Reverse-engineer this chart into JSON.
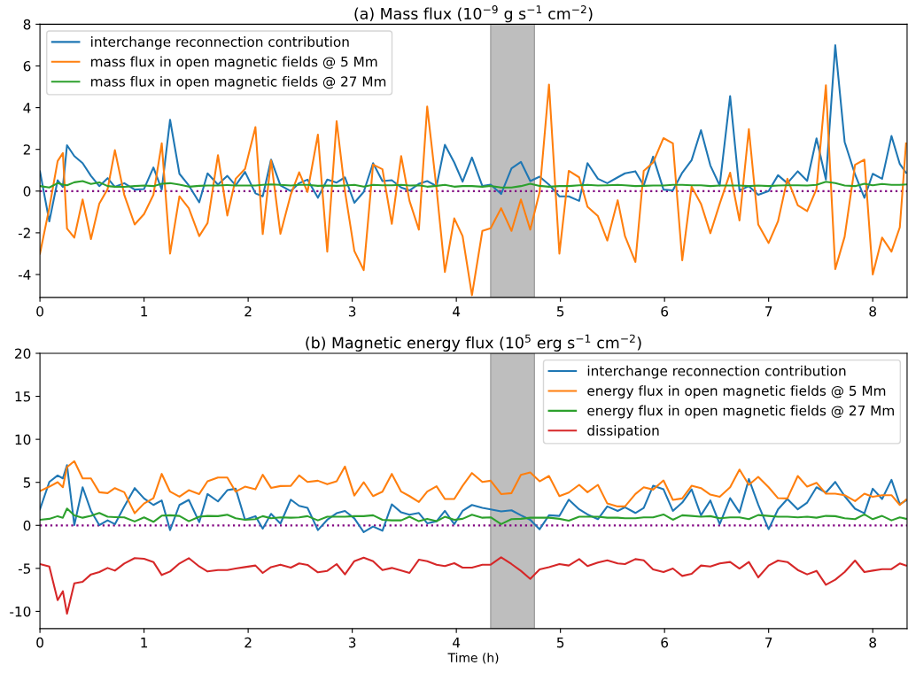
{
  "chart_data": [
    {
      "type": "line",
      "title": "(a) Mass flux (10$^{−9}$ g s$^{−1}$ cm$^{−2}$)",
      "x": [
        0,
        0.09,
        0.17,
        0.22,
        0.26,
        0.33,
        0.41,
        0.49,
        0.57,
        0.65,
        0.72,
        0.81,
        0.91,
        1.0,
        1.09,
        1.17,
        1.25,
        1.34,
        1.43,
        1.53,
        1.61,
        1.71,
        1.8,
        1.88,
        1.97,
        2.07,
        2.14,
        2.22,
        2.31,
        2.41,
        2.49,
        2.57,
        2.67,
        2.76,
        2.85,
        2.93,
        3.02,
        3.11,
        3.2,
        3.29,
        3.38,
        3.47,
        3.55,
        3.64,
        3.72,
        3.81,
        3.89,
        3.98,
        4.06,
        4.15,
        4.25,
        4.33,
        4.43,
        4.53,
        4.62,
        4.71,
        4.8,
        4.89,
        4.99,
        5.08,
        5.18,
        5.26,
        5.36,
        5.45,
        5.55,
        5.62,
        5.72,
        5.8,
        5.89,
        5.99,
        6.08,
        6.17,
        6.26,
        6.35,
        6.44,
        6.53,
        6.63,
        6.72,
        6.81,
        6.9,
        7.0,
        7.09,
        7.18,
        7.28,
        7.37,
        7.46,
        7.55,
        7.64,
        7.73,
        7.83,
        7.92,
        8.0,
        8.09,
        8.18,
        8.26,
        8.32
      ],
      "series": [
        {
          "name": "interchange reconnection contribution",
          "color": "#1f77b4",
          "values": [
            0.95,
            -1.45,
            0.52,
            0.2,
            2.2,
            1.68,
            1.34,
            0.73,
            0.24,
            0.62,
            0.2,
            0.38,
            0.07,
            0.1,
            1.13,
            0.07,
            3.42,
            0.83,
            0.27,
            -0.54,
            0.85,
            0.31,
            0.73,
            0.27,
            0.92,
            -0.11,
            -0.25,
            1.51,
            0.27,
            0,
            0.38,
            0.55,
            -0.32,
            0.55,
            0.41,
            0.66,
            -0.56,
            -0.04,
            1.34,
            0.48,
            0.52,
            0.17,
            0.03,
            0.35,
            0.48,
            0.24,
            2.22,
            1.37,
            0.45,
            1.61,
            0.24,
            0.31,
            -0.14,
            1.09,
            1.4,
            0.48,
            0.69,
            0.31,
            -0.25,
            -0.25,
            -0.47,
            1.34,
            0.59,
            0.38,
            0.66,
            0.85,
            0.95,
            0.27,
            1.65,
            0.07,
            0.03,
            0.88,
            1.48,
            2.92,
            1.23,
            0.27,
            4.55,
            0.03,
            0.24,
            -0.18,
            0,
            0.76,
            0.38,
            0.95,
            0.49,
            2.53,
            0.55,
            6.99,
            2.36,
            0.8,
            -0.32,
            0.83,
            0.59,
            2.64,
            1.3,
            0.88
          ]
        },
        {
          "name": "mass flux in open magnetic fields @ 5 Mm",
          "color": "#ff7f0e",
          "values": [
            -3.0,
            -0.8,
            1.44,
            1.82,
            -1.8,
            -2.23,
            -0.4,
            -2.3,
            -0.6,
            0.1,
            1.96,
            -0.18,
            -1.6,
            -1.1,
            -0.18,
            2.29,
            -3.0,
            -0.25,
            -0.82,
            -2.16,
            -1.53,
            1.72,
            -1.17,
            0.59,
            1.06,
            3.07,
            -2.06,
            1.47,
            -2.05,
            -0.16,
            0.9,
            -0.04,
            2.71,
            -2.9,
            3.35,
            0.0,
            -2.87,
            -3.79,
            1.27,
            1.05,
            -1.57,
            1.68,
            -0.47,
            -1.85,
            4.05,
            0.1,
            -3.88,
            -1.31,
            -2.16,
            -4.99,
            -1.91,
            -1.78,
            -0.82,
            -1.91,
            -0.4,
            -1.85,
            -0.04,
            5.11,
            -3.0,
            0.97,
            0.66,
            -0.75,
            -1.2,
            -2.37,
            -0.44,
            -2.16,
            -3.4,
            0.97,
            1.37,
            2.54,
            2.29,
            -3.32,
            0.21,
            -0.61,
            -2.02,
            -0.61,
            0.88,
            -1.41,
            2.97,
            -1.6,
            -2.49,
            -1.45,
            0.59,
            -0.68,
            -0.96,
            0.1,
            5.07,
            -3.74,
            -2.19,
            1.26,
            1.51,
            -4.0,
            -2.23,
            -2.9,
            -1.74,
            2.29
          ]
        },
        {
          "name": "mass flux in open magnetic fields @ 27 Mm",
          "color": "#2ca02c",
          "values": [
            0.24,
            0.17,
            0.38,
            0.31,
            0.28,
            0.42,
            0.48,
            0.34,
            0.42,
            0.24,
            0.21,
            0.2,
            0.24,
            0.27,
            0.24,
            0.35,
            0.38,
            0.31,
            0.21,
            0.25,
            0.27,
            0.27,
            0.29,
            0.27,
            0.27,
            0.27,
            0.3,
            0.32,
            0.3,
            0.27,
            0.3,
            0.3,
            0.25,
            0.27,
            0.25,
            0.27,
            0.3,
            0.21,
            0.3,
            0.28,
            0.28,
            0.3,
            0.27,
            0.28,
            0.21,
            0.25,
            0.3,
            0.21,
            0.24,
            0.24,
            0.21,
            0.25,
            0.17,
            0.17,
            0.24,
            0.35,
            0.25,
            0.21,
            0.24,
            0.24,
            0.28,
            0.3,
            0.27,
            0.28,
            0.3,
            0.28,
            0.24,
            0.25,
            0.27,
            0.27,
            0.3,
            0.3,
            0.28,
            0.28,
            0.24,
            0.27,
            0.27,
            0.27,
            0.24,
            0.27,
            0.24,
            0.27,
            0.28,
            0.28,
            0.27,
            0.3,
            0.45,
            0.38,
            0.27,
            0.24,
            0.35,
            0.28,
            0.34,
            0.3,
            0.3,
            0.32
          ]
        }
      ],
      "xlim": [
        0,
        8.33
      ],
      "xticks": [
        0,
        1,
        2,
        3,
        4,
        5,
        6,
        7,
        8
      ],
      "ylim": [
        -5.1,
        8
      ],
      "yticks": [
        -4,
        -2,
        0,
        2,
        4,
        6,
        8
      ],
      "ref_lines": [
        {
          "axis": "y",
          "value": 0,
          "color": "#800080",
          "line_style": "dotted"
        }
      ],
      "bands": [
        {
          "axis": "x",
          "from": 4.33,
          "to": 4.75,
          "color": "#bebebe"
        }
      ],
      "legend": "top left",
      "grid": false
    },
    {
      "type": "line",
      "title": "(b) Magnetic energy flux (10$^{5}$ erg s$^{−1}$ cm$^{−2}$)",
      "xlabel": "Time (h)",
      "x": [
        0,
        0.09,
        0.17,
        0.22,
        0.26,
        0.33,
        0.41,
        0.49,
        0.57,
        0.65,
        0.72,
        0.81,
        0.91,
        1.0,
        1.09,
        1.17,
        1.25,
        1.34,
        1.43,
        1.53,
        1.61,
        1.71,
        1.8,
        1.88,
        1.97,
        2.07,
        2.14,
        2.22,
        2.31,
        2.41,
        2.49,
        2.57,
        2.67,
        2.76,
        2.85,
        2.93,
        3.02,
        3.11,
        3.2,
        3.29,
        3.38,
        3.47,
        3.55,
        3.64,
        3.72,
        3.81,
        3.89,
        3.98,
        4.06,
        4.15,
        4.25,
        4.33,
        4.43,
        4.53,
        4.62,
        4.71,
        4.8,
        4.89,
        4.99,
        5.08,
        5.18,
        5.26,
        5.36,
        5.45,
        5.55,
        5.62,
        5.72,
        5.8,
        5.89,
        5.99,
        6.08,
        6.17,
        6.26,
        6.35,
        6.44,
        6.53,
        6.63,
        6.72,
        6.81,
        6.9,
        7.0,
        7.09,
        7.18,
        7.28,
        7.37,
        7.46,
        7.55,
        7.64,
        7.73,
        7.83,
        7.92,
        8.0,
        8.09,
        8.18,
        8.26,
        8.32
      ],
      "series": [
        {
          "name": "interchange reconnection contribution",
          "color": "#1f77b4",
          "values": [
            1.86,
            5.05,
            5.8,
            5.46,
            7.0,
            0.03,
            4.43,
            1.68,
            0.03,
            0.58,
            0.14,
            2.2,
            4.33,
            3.13,
            2.37,
            2.89,
            -0.55,
            2.37,
            2.96,
            0.38,
            3.64,
            2.78,
            4.09,
            4.26,
            0.65,
            1.07,
            -0.38,
            1.34,
            0.21,
            2.99,
            2.27,
            2.03,
            -0.55,
            0.65,
            1.41,
            1.68,
            0.82,
            -0.79,
            -0.14,
            -0.62,
            2.44,
            1.51,
            1.24,
            1.44,
            0.24,
            0.48,
            1.68,
            0.14,
            1.68,
            2.37,
            2.03,
            1.86,
            1.62,
            1.75,
            1.17,
            0.65,
            -0.45,
            1.17,
            1.1,
            2.99,
            1.86,
            1.27,
            0.72,
            2.2,
            1.68,
            2.1,
            1.44,
            2.03,
            4.6,
            4.19,
            1.68,
            2.65,
            4.19,
            1.17,
            2.89,
            0.14,
            3.16,
            1.51,
            5.39,
            2.4,
            -0.45,
            1.86,
            3.06,
            1.86,
            2.65,
            4.43,
            3.81,
            5.05,
            3.4,
            1.93,
            1.41,
            4.26,
            3.06,
            5.29,
            2.47,
            2.89
          ]
        },
        {
          "name": "energy flux in open magnetic fields @ 5 Mm",
          "color": "#ff7f0e",
          "values": [
            3.99,
            4.5,
            5.02,
            4.43,
            6.77,
            7.46,
            5.46,
            5.46,
            3.85,
            3.75,
            4.33,
            3.85,
            1.41,
            2.54,
            3.16,
            5.98,
            3.92,
            3.33,
            4.09,
            3.64,
            5.12,
            5.57,
            5.57,
            3.92,
            4.5,
            4.19,
            5.88,
            4.36,
            4.57,
            4.6,
            5.81,
            5.05,
            5.19,
            4.78,
            5.12,
            6.84,
            3.47,
            5.02,
            3.4,
            3.92,
            5.98,
            3.92,
            3.4,
            2.71,
            3.92,
            4.54,
            3.06,
            3.06,
            4.6,
            6.08,
            5.05,
            5.19,
            3.64,
            3.75,
            5.88,
            6.15,
            5.12,
            5.74,
            3.4,
            3.81,
            4.71,
            3.85,
            4.71,
            2.54,
            2.2,
            2.2,
            3.64,
            4.43,
            4.16,
            5.22,
            2.96,
            3.13,
            4.6,
            4.33,
            3.57,
            3.33,
            4.43,
            6.49,
            4.71,
            5.64,
            4.43,
            3.16,
            3.13,
            5.74,
            4.5,
            4.95,
            3.68,
            3.68,
            3.51,
            2.82,
            3.68,
            3.33,
            3.51,
            3.51,
            2.37,
            2.99
          ]
        },
        {
          "name": "energy flux in open magnetic fields @ 27 Mm",
          "color": "#2ca02c",
          "values": [
            0.65,
            0.76,
            1.07,
            0.89,
            1.96,
            1.17,
            0.89,
            1.1,
            1.44,
            1.0,
            0.96,
            0.93,
            0.45,
            0.93,
            0.41,
            1.13,
            1.17,
            1.1,
            0.48,
            1.0,
            1.1,
            1.07,
            1.24,
            0.82,
            0.65,
            0.72,
            1.07,
            0.82,
            0.93,
            0.89,
            0.93,
            1.07,
            0.58,
            1.0,
            1.0,
            1.0,
            1.07,
            1.07,
            1.17,
            0.65,
            0.58,
            0.58,
            1.0,
            0.48,
            0.76,
            0.48,
            1.0,
            0.65,
            0.76,
            1.24,
            0.89,
            0.93,
            0.14,
            0.72,
            0.76,
            0.89,
            0.89,
            0.89,
            0.76,
            0.55,
            1.0,
            1.0,
            1.0,
            0.89,
            0.89,
            0.82,
            0.82,
            0.93,
            0.93,
            1.27,
            0.65,
            1.17,
            1.1,
            1.0,
            1.07,
            0.82,
            0.93,
            0.93,
            0.72,
            1.2,
            1.1,
            1.0,
            1.0,
            0.93,
            1.0,
            0.89,
            1.1,
            1.07,
            0.82,
            0.72,
            1.27,
            0.72,
            1.1,
            0.58,
            0.93,
            0.76
          ]
        },
        {
          "name": "dissipation",
          "color": "#d62728",
          "values": [
            -4.5,
            -4.78,
            -8.69,
            -7.66,
            -10.27,
            -6.74,
            -6.56,
            -5.7,
            -5.43,
            -4.95,
            -5.26,
            -4.43,
            -3.81,
            -3.88,
            -4.26,
            -5.77,
            -5.36,
            -4.43,
            -3.81,
            -4.78,
            -5.36,
            -5.19,
            -5.19,
            -5.02,
            -4.85,
            -4.67,
            -5.53,
            -4.85,
            -4.57,
            -4.91,
            -4.43,
            -4.6,
            -5.46,
            -5.29,
            -4.5,
            -5.7,
            -4.16,
            -3.75,
            -4.16,
            -5.19,
            -4.95,
            -5.26,
            -5.53,
            -3.99,
            -4.16,
            -4.57,
            -4.74,
            -4.4,
            -4.91,
            -4.91,
            -4.57,
            -4.57,
            -3.71,
            -4.5,
            -5.29,
            -6.22,
            -5.12,
            -4.85,
            -4.5,
            -4.67,
            -3.92,
            -4.74,
            -4.33,
            -4.06,
            -4.43,
            -4.5,
            -3.92,
            -4.06,
            -5.12,
            -5.43,
            -5.02,
            -5.88,
            -5.64,
            -4.67,
            -4.78,
            -4.43,
            -4.26,
            -5.02,
            -4.26,
            -6.05,
            -4.67,
            -4.09,
            -4.26,
            -5.19,
            -5.7,
            -5.29,
            -6.91,
            -6.32,
            -5.43,
            -4.09,
            -5.43,
            -5.26,
            -5.09,
            -5.09,
            -4.43,
            -4.67
          ]
        }
      ],
      "xlim": [
        0,
        8.33
      ],
      "xticks": [
        0,
        1,
        2,
        3,
        4,
        5,
        6,
        7,
        8
      ],
      "ylim": [
        -12,
        20
      ],
      "yticks": [
        -10,
        -5,
        0,
        5,
        10,
        15,
        20
      ],
      "ref_lines": [
        {
          "axis": "y",
          "value": 0,
          "color": "#800080",
          "line_style": "dotted"
        }
      ],
      "bands": [
        {
          "axis": "x",
          "from": 4.33,
          "to": 4.75,
          "color": "#bebebe"
        }
      ],
      "legend": "top right",
      "grid": false
    }
  ]
}
